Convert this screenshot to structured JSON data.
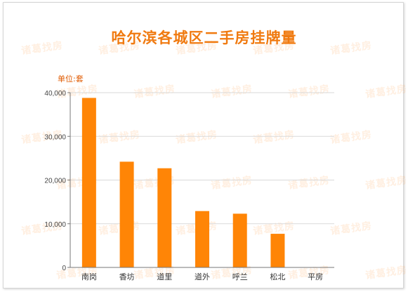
{
  "chart_data": {
    "type": "bar",
    "title": "哈尔滨各城区二手房挂牌量",
    "unit_label": "单位:套",
    "categories": [
      "南岗",
      "香坊",
      "道里",
      "道外",
      "呼兰",
      "松北",
      "平房"
    ],
    "values": [
      38800,
      24200,
      22700,
      12900,
      12300,
      7700,
      0
    ],
    "ylim": [
      0,
      40000
    ],
    "yticks": [
      0,
      10000,
      20000,
      30000,
      40000
    ],
    "ytick_labels": [
      "0",
      "10,000",
      "20,000",
      "30,000",
      "40,000"
    ],
    "grid": true,
    "legend": "none",
    "bar_color": "#ff8506"
  },
  "watermark": "诸葛找房"
}
